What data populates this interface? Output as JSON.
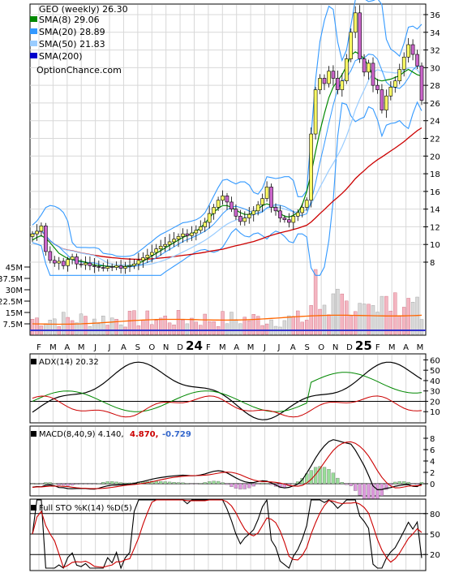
{
  "colors": {
    "price_up": "#ffff66",
    "price_down": "#cc66cc",
    "sma8": "#008800",
    "sma20": "#3399ff",
    "sma50": "#99ccff",
    "sma200": "#cc0000",
    "bollinger": "#3399ff",
    "volume_up": "#f4b6c2",
    "volume_down": "#d9d9d9",
    "volume_ma": "#ff6600",
    "adx": "#000000",
    "plus_di": "#008800",
    "minus_di": "#cc0000",
    "macd": "#000000",
    "signal": "#cc0000",
    "hist_pos": "#99dd99",
    "hist_neg": "#dd99dd",
    "stoch_k": "#000000",
    "stoch_d": "#cc0000",
    "grid": "#d8d8d8"
  },
  "legend": {
    "title": "GEO (weekly) 26.30",
    "items": [
      {
        "label": "SMA(8) 29.06",
        "color": "#008800"
      },
      {
        "label": "SMA(20) 28.89",
        "color": "#3399ff"
      },
      {
        "label": "SMA(50) 21.83",
        "color": "#99ccff"
      },
      {
        "label": "SMA(200)",
        "color": "#0000cc"
      }
    ],
    "watermark": "OptionChance.com"
  },
  "x_axis": {
    "labels": [
      "F",
      "M",
      "A",
      "M",
      "J",
      "J",
      "A",
      "S",
      "O",
      "N",
      "D",
      "24",
      "F",
      "M",
      "A",
      "M",
      "J",
      "J",
      "A",
      "S",
      "O",
      "N",
      "D",
      "25",
      "F",
      "M",
      "A",
      "M"
    ]
  },
  "panels": {
    "adx": {
      "label": "ADX(14) 20.32",
      "ticks": [
        "60",
        "50",
        "40",
        "30",
        "20",
        "10"
      ]
    },
    "macd": {
      "label": "MACD(8,40,9) 4.140,",
      "val2": "4.870,",
      "val3": "-0.729",
      "ticks": [
        "8",
        "6",
        "4",
        "2",
        "0"
      ]
    },
    "sto": {
      "label": "Full STO %K(14) %D(5)",
      "ticks": [
        "80",
        "50",
        "20"
      ]
    }
  },
  "chart_data": {
    "type": "line",
    "title": "GEO (weekly) 26.30",
    "price_axis": {
      "ylim": [
        7,
        37
      ],
      "ticks": [
        8,
        10,
        12,
        14,
        16,
        18,
        20,
        22,
        24,
        26,
        28,
        30,
        32,
        34,
        36
      ]
    },
    "volume_axis": {
      "ticks": [
        "45M",
        "37.5M",
        "30M",
        "22.5M",
        "15M",
        "7.5M"
      ],
      "ylim": [
        0,
        50
      ]
    },
    "price_close": [
      11.2,
      11.5,
      12.1,
      9.2,
      8.2,
      7.9,
      8.1,
      7.6,
      8.3,
      8.6,
      7.8,
      7.7,
      7.9,
      7.6,
      7.5,
      7.4,
      7.3,
      7.5,
      7.4,
      7.6,
      7.3,
      7.5,
      7.6,
      7.8,
      8.2,
      8.5,
      8.8,
      9.1,
      9.5,
      9.8,
      10.0,
      10.3,
      10.6,
      10.9,
      11.2,
      11.0,
      11.3,
      11.6,
      12.0,
      12.5,
      13.5,
      14.2,
      15.0,
      15.5,
      14.8,
      14.0,
      13.2,
      12.6,
      13.0,
      13.4,
      13.8,
      14.5,
      15.2,
      16.5,
      14.2,
      13.8,
      13.0,
      12.8,
      12.5,
      13.2,
      13.6,
      14.2,
      15.0,
      22.5,
      27.5,
      28.8,
      28.2,
      29.6,
      28.8,
      27.5,
      28.5,
      31.0,
      34.0,
      36.2,
      31.0,
      29.5,
      30.5,
      28.0,
      27.5,
      25.2,
      26.8,
      27.8,
      28.5,
      29.8,
      31.2,
      32.6,
      31.5,
      30.2,
      26.3
    ],
    "sma8": [
      10.5,
      10.8,
      11.0,
      10.7,
      10.2,
      9.6,
      9.0,
      8.7,
      8.4,
      8.3,
      8.2,
      8.1,
      8.0,
      7.8,
      7.7,
      7.6,
      7.6,
      7.5,
      7.5,
      7.5,
      7.5,
      7.5,
      7.6,
      7.7,
      7.9,
      8.1,
      8.4,
      8.7,
      9.0,
      9.3,
      9.6,
      9.9,
      10.2,
      10.5,
      10.8,
      11.0,
      11.2,
      11.5,
      11.9,
      12.4,
      13.0,
      13.6,
      14.1,
      14.4,
      14.4,
      14.2,
      13.9,
      13.6,
      13.4,
      13.4,
      13.6,
      14.0,
      14.4,
      14.6,
      14.4,
      14.0,
      13.5,
      13.2,
      13.1,
      13.3,
      13.6,
      14.5,
      16.0,
      18.0,
      20.5,
      22.8,
      24.8,
      26.6,
      27.8,
      28.5,
      29.2,
      30.2,
      31.4,
      31.8,
      31.5,
      31.0,
      30.2,
      29.0,
      28.6,
      28.5,
      28.6,
      28.7,
      28.9,
      29.1,
      29.5,
      29.8,
      29.5,
      29.2,
      29.06
    ]
  }
}
